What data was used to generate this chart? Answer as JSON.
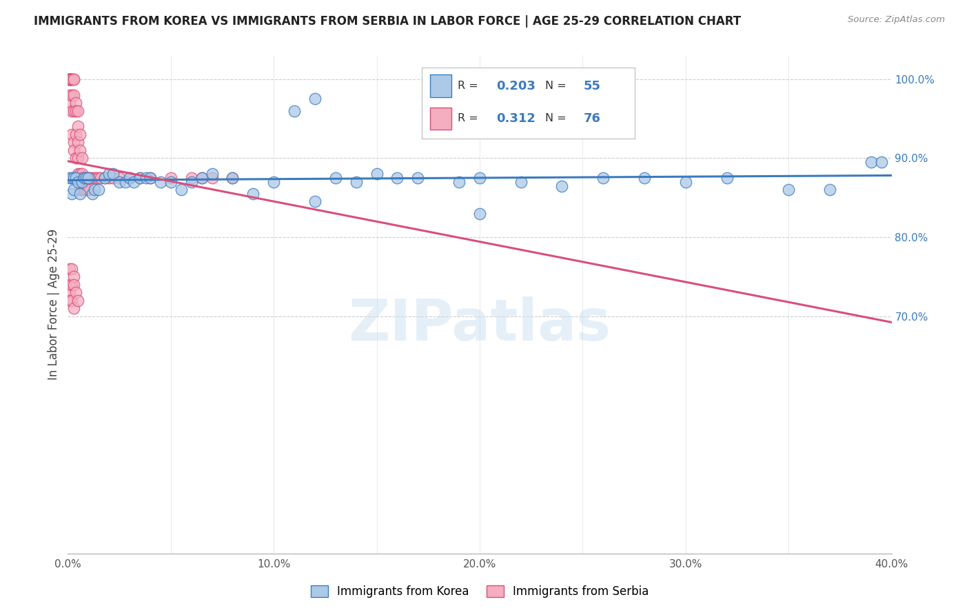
{
  "title": "IMMIGRANTS FROM KOREA VS IMMIGRANTS FROM SERBIA IN LABOR FORCE | AGE 25-29 CORRELATION CHART",
  "source": "Source: ZipAtlas.com",
  "ylabel": "In Labor Force | Age 25-29",
  "xlim": [
    0.0,
    0.4
  ],
  "ylim": [
    0.4,
    1.03
  ],
  "xticks": [
    0.0,
    0.05,
    0.1,
    0.15,
    0.2,
    0.25,
    0.3,
    0.35,
    0.4
  ],
  "xticklabels": [
    "0.0%",
    "",
    "10.0%",
    "",
    "20.0%",
    "",
    "30.0%",
    "",
    "40.0%"
  ],
  "yticks_right": [
    0.7,
    0.8,
    0.9,
    1.0
  ],
  "yticklabels_right": [
    "70.0%",
    "80.0%",
    "90.0%",
    "100.0%"
  ],
  "korea_R": "0.203",
  "korea_N": "55",
  "serbia_R": "0.312",
  "serbia_N": "76",
  "korea_color": "#adc9e8",
  "serbia_color": "#f5adc0",
  "korea_line_color": "#3a7bbf",
  "serbia_line_color": "#d94f7a",
  "legend_korea": "Immigrants from Korea",
  "legend_serbia": "Immigrants from Serbia",
  "watermark": "ZIPatlas",
  "korea_x": [
    0.001,
    0.002,
    0.002,
    0.003,
    0.003,
    0.004,
    0.005,
    0.006,
    0.007,
    0.008,
    0.009,
    0.01,
    0.012,
    0.013,
    0.015,
    0.018,
    0.02,
    0.022,
    0.025,
    0.028,
    0.03,
    0.032,
    0.035,
    0.038,
    0.04,
    0.045,
    0.05,
    0.055,
    0.06,
    0.065,
    0.07,
    0.08,
    0.09,
    0.1,
    0.11,
    0.12,
    0.13,
    0.14,
    0.15,
    0.16,
    0.17,
    0.19,
    0.2,
    0.22,
    0.24,
    0.26,
    0.28,
    0.3,
    0.32,
    0.35,
    0.37,
    0.39,
    0.395,
    0.12,
    0.2
  ],
  "korea_y": [
    0.875,
    0.875,
    0.855,
    0.86,
    0.875,
    0.875,
    0.87,
    0.855,
    0.87,
    0.875,
    0.875,
    0.875,
    0.855,
    0.86,
    0.86,
    0.875,
    0.88,
    0.88,
    0.87,
    0.87,
    0.875,
    0.87,
    0.875,
    0.875,
    0.875,
    0.87,
    0.87,
    0.86,
    0.87,
    0.875,
    0.88,
    0.875,
    0.855,
    0.87,
    0.96,
    0.975,
    0.875,
    0.87,
    0.88,
    0.875,
    0.875,
    0.87,
    0.875,
    0.87,
    0.865,
    0.875,
    0.875,
    0.87,
    0.875,
    0.86,
    0.86,
    0.895,
    0.895,
    0.845,
    0.83
  ],
  "serbia_x": [
    0.001,
    0.001,
    0.001,
    0.001,
    0.001,
    0.001,
    0.001,
    0.001,
    0.001,
    0.001,
    0.002,
    0.002,
    0.002,
    0.002,
    0.002,
    0.002,
    0.003,
    0.003,
    0.003,
    0.003,
    0.003,
    0.003,
    0.004,
    0.004,
    0.004,
    0.004,
    0.005,
    0.005,
    0.005,
    0.005,
    0.005,
    0.006,
    0.006,
    0.006,
    0.006,
    0.007,
    0.007,
    0.007,
    0.007,
    0.008,
    0.008,
    0.009,
    0.009,
    0.01,
    0.01,
    0.01,
    0.011,
    0.012,
    0.013,
    0.014,
    0.015,
    0.016,
    0.018,
    0.02,
    0.022,
    0.025,
    0.03,
    0.035,
    0.04,
    0.05,
    0.06,
    0.065,
    0.07,
    0.08,
    0.001,
    0.001,
    0.001,
    0.001,
    0.002,
    0.002,
    0.002,
    0.003,
    0.003,
    0.003,
    0.004,
    0.005
  ],
  "serbia_y": [
    1.0,
    1.0,
    1.0,
    1.0,
    1.0,
    1.0,
    1.0,
    1.0,
    0.98,
    0.97,
    1.0,
    1.0,
    1.0,
    0.98,
    0.96,
    0.93,
    1.0,
    1.0,
    0.98,
    0.96,
    0.92,
    0.91,
    0.97,
    0.96,
    0.93,
    0.9,
    0.96,
    0.94,
    0.92,
    0.9,
    0.88,
    0.93,
    0.91,
    0.88,
    0.86,
    0.9,
    0.88,
    0.875,
    0.86,
    0.875,
    0.86,
    0.875,
    0.86,
    0.875,
    0.875,
    0.86,
    0.875,
    0.875,
    0.875,
    0.875,
    0.875,
    0.875,
    0.875,
    0.875,
    0.875,
    0.875,
    0.875,
    0.875,
    0.875,
    0.875,
    0.875,
    0.875,
    0.875,
    0.875,
    0.76,
    0.74,
    0.73,
    0.72,
    0.76,
    0.74,
    0.72,
    0.71,
    0.75,
    0.74,
    0.73,
    0.72
  ]
}
